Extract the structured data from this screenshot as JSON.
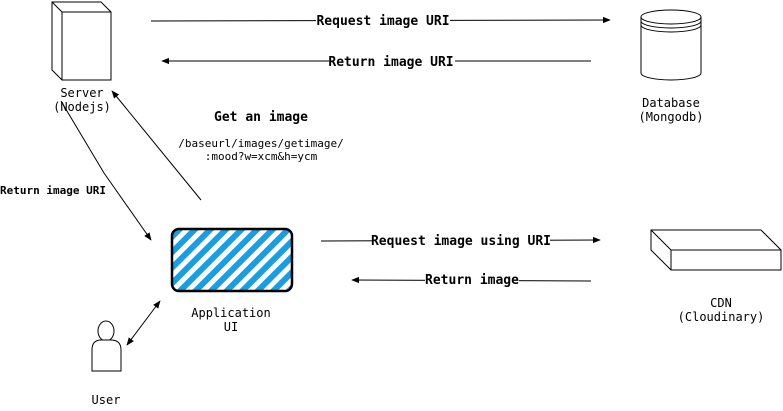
{
  "nodes": {
    "server": {
      "line1": "Server",
      "line2": "(Nodejs)"
    },
    "database": {
      "line1": "Database",
      "line2": "(Mongodb)"
    },
    "app": {
      "line1": "Application",
      "line2": "UI"
    },
    "cdn": {
      "line1": "CDN",
      "line2": "(Cloudinary)"
    },
    "user": {
      "line1": "User"
    }
  },
  "edges": {
    "request_uri": "Request image URI",
    "return_uri_db": "Return image URI",
    "get_image_title": "Get an image",
    "get_image_path1": "/baseurl/images/getimage/",
    "get_image_path2": ":mood?w=xcm&h=ycm",
    "return_uri_app": "Return image URI",
    "request_cdn": "Request image using URI",
    "return_image": "Return image"
  },
  "colors": {
    "app_hatch": "#1a9ee0",
    "stroke": "#000000"
  }
}
